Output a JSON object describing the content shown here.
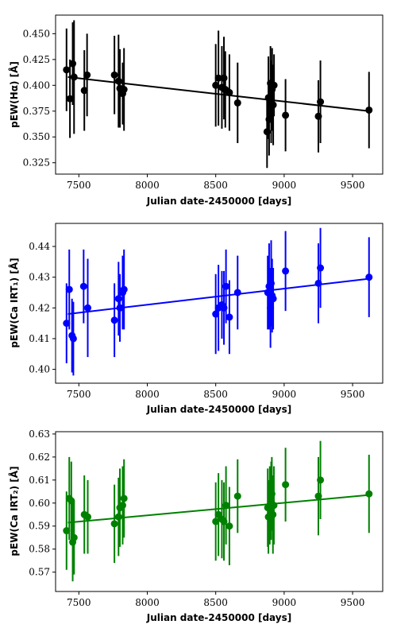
{
  "chart_data": [
    {
      "type": "scatter",
      "xlabel": "Julian date-2450000 [days]",
      "ylabel": "pEW(Hα) [Å]",
      "xlim": [
        7330,
        9720
      ],
      "ylim": [
        0.314,
        0.468
      ],
      "xticks": [
        7500,
        8000,
        8500,
        9000,
        9500
      ],
      "yticks": [
        0.325,
        0.35,
        0.375,
        0.4,
        0.425,
        0.45
      ],
      "tick_decimals": 3,
      "color": "#000000",
      "points": [
        {
          "x": 7410,
          "y": 0.415,
          "err": 0.04
        },
        {
          "x": 7435,
          "y": 0.387,
          "err": 0.038
        },
        {
          "x": 7455,
          "y": 0.421,
          "err": 0.04
        },
        {
          "x": 7465,
          "y": 0.408,
          "err": 0.055
        },
        {
          "x": 7540,
          "y": 0.395,
          "err": 0.039
        },
        {
          "x": 7560,
          "y": 0.41,
          "err": 0.04
        },
        {
          "x": 7760,
          "y": 0.41,
          "err": 0.038
        },
        {
          "x": 7790,
          "y": 0.404,
          "err": 0.045
        },
        {
          "x": 7800,
          "y": 0.397,
          "err": 0.038
        },
        {
          "x": 7820,
          "y": 0.392,
          "err": 0.03
        },
        {
          "x": 7830,
          "y": 0.396,
          "err": 0.04
        },
        {
          "x": 8500,
          "y": 0.4,
          "err": 0.04
        },
        {
          "x": 8520,
          "y": 0.407,
          "err": 0.046
        },
        {
          "x": 8545,
          "y": 0.398,
          "err": 0.04
        },
        {
          "x": 8560,
          "y": 0.407,
          "err": 0.04
        },
        {
          "x": 8570,
          "y": 0.396,
          "err": 0.037
        },
        {
          "x": 8600,
          "y": 0.393,
          "err": 0.037
        },
        {
          "x": 8660,
          "y": 0.383,
          "err": 0.039
        },
        {
          "x": 8875,
          "y": 0.355,
          "err": 0.035
        },
        {
          "x": 8885,
          "y": 0.388,
          "err": 0.04
        },
        {
          "x": 8890,
          "y": 0.367,
          "err": 0.035
        },
        {
          "x": 8900,
          "y": 0.402,
          "err": 0.036
        },
        {
          "x": 8905,
          "y": 0.384,
          "err": 0.04
        },
        {
          "x": 8912,
          "y": 0.396,
          "err": 0.04
        },
        {
          "x": 8920,
          "y": 0.381,
          "err": 0.039
        },
        {
          "x": 8926,
          "y": 0.4,
          "err": 0.03
        },
        {
          "x": 9010,
          "y": 0.371,
          "err": 0.035
        },
        {
          "x": 9250,
          "y": 0.37,
          "err": 0.035
        },
        {
          "x": 9265,
          "y": 0.384,
          "err": 0.04
        },
        {
          "x": 9620,
          "y": 0.376,
          "err": 0.037
        }
      ],
      "fit": {
        "x": [
          7420,
          9620
        ],
        "y": [
          0.408,
          0.375
        ]
      }
    },
    {
      "type": "scatter",
      "xlabel": "Julian date-2450000 [days]",
      "ylabel": "pEW(Ca IRT₁) [Å]",
      "xlim": [
        7330,
        9720
      ],
      "ylim": [
        0.3955,
        0.4475
      ],
      "xticks": [
        7500,
        8000,
        8500,
        9000,
        9500
      ],
      "yticks": [
        0.4,
        0.41,
        0.42,
        0.43,
        0.44
      ],
      "tick_decimals": 2,
      "color": "#0000ff",
      "points": [
        {
          "x": 7410,
          "y": 0.415,
          "err": 0.013
        },
        {
          "x": 7430,
          "y": 0.426,
          "err": 0.013
        },
        {
          "x": 7450,
          "y": 0.411,
          "err": 0.012
        },
        {
          "x": 7460,
          "y": 0.41,
          "err": 0.012
        },
        {
          "x": 7535,
          "y": 0.427,
          "err": 0.012
        },
        {
          "x": 7565,
          "y": 0.42,
          "err": 0.016
        },
        {
          "x": 7760,
          "y": 0.416,
          "err": 0.012
        },
        {
          "x": 7790,
          "y": 0.423,
          "err": 0.012
        },
        {
          "x": 7800,
          "y": 0.42,
          "err": 0.011
        },
        {
          "x": 7820,
          "y": 0.425,
          "err": 0.012
        },
        {
          "x": 7830,
          "y": 0.426,
          "err": 0.013
        },
        {
          "x": 8500,
          "y": 0.418,
          "err": 0.013
        },
        {
          "x": 8520,
          "y": 0.42,
          "err": 0.014
        },
        {
          "x": 8545,
          "y": 0.421,
          "err": 0.011
        },
        {
          "x": 8560,
          "y": 0.42,
          "err": 0.012
        },
        {
          "x": 8575,
          "y": 0.427,
          "err": 0.012
        },
        {
          "x": 8600,
          "y": 0.417,
          "err": 0.012
        },
        {
          "x": 8660,
          "y": 0.425,
          "err": 0.012
        },
        {
          "x": 8880,
          "y": 0.425,
          "err": 0.012
        },
        {
          "x": 8890,
          "y": 0.427,
          "err": 0.014
        },
        {
          "x": 8900,
          "y": 0.42,
          "err": 0.013
        },
        {
          "x": 8905,
          "y": 0.428,
          "err": 0.014
        },
        {
          "x": 8912,
          "y": 0.424,
          "err": 0.012
        },
        {
          "x": 8920,
          "y": 0.423,
          "err": 0.01
        },
        {
          "x": 9010,
          "y": 0.432,
          "err": 0.013
        },
        {
          "x": 9250,
          "y": 0.428,
          "err": 0.013
        },
        {
          "x": 9265,
          "y": 0.433,
          "err": 0.013
        },
        {
          "x": 9620,
          "y": 0.43,
          "err": 0.013
        }
      ],
      "fit": {
        "x": [
          7420,
          9620
        ],
        "y": [
          0.418,
          0.4295
        ]
      }
    },
    {
      "type": "scatter",
      "xlabel": "Julian date-2450000 [days]",
      "ylabel": "pEW(Ca IRT₂) [Å]",
      "xlim": [
        7330,
        9720
      ],
      "ylim": [
        0.5616,
        0.631
      ],
      "xticks": [
        7500,
        8000,
        8500,
        9000,
        9500
      ],
      "yticks": [
        0.57,
        0.58,
        0.59,
        0.6,
        0.61,
        0.62,
        0.63
      ],
      "tick_decimals": 2,
      "color": "#008000",
      "points": [
        {
          "x": 7410,
          "y": 0.588,
          "err": 0.017
        },
        {
          "x": 7430,
          "y": 0.602,
          "err": 0.018
        },
        {
          "x": 7445,
          "y": 0.601,
          "err": 0.017
        },
        {
          "x": 7455,
          "y": 0.583,
          "err": 0.017
        },
        {
          "x": 7465,
          "y": 0.585,
          "err": 0.016
        },
        {
          "x": 7540,
          "y": 0.595,
          "err": 0.017
        },
        {
          "x": 7565,
          "y": 0.594,
          "err": 0.016
        },
        {
          "x": 7760,
          "y": 0.591,
          "err": 0.017
        },
        {
          "x": 7790,
          "y": 0.594,
          "err": 0.017
        },
        {
          "x": 7800,
          "y": 0.598,
          "err": 0.017
        },
        {
          "x": 7820,
          "y": 0.599,
          "err": 0.017
        },
        {
          "x": 7830,
          "y": 0.602,
          "err": 0.017
        },
        {
          "x": 8500,
          "y": 0.592,
          "err": 0.017
        },
        {
          "x": 8520,
          "y": 0.595,
          "err": 0.018
        },
        {
          "x": 8545,
          "y": 0.593,
          "err": 0.017
        },
        {
          "x": 8560,
          "y": 0.592,
          "err": 0.017
        },
        {
          "x": 8575,
          "y": 0.599,
          "err": 0.017
        },
        {
          "x": 8600,
          "y": 0.59,
          "err": 0.017
        },
        {
          "x": 8660,
          "y": 0.603,
          "err": 0.016
        },
        {
          "x": 8880,
          "y": 0.598,
          "err": 0.017
        },
        {
          "x": 8885,
          "y": 0.594,
          "err": 0.016
        },
        {
          "x": 8895,
          "y": 0.599,
          "err": 0.017
        },
        {
          "x": 8905,
          "y": 0.601,
          "err": 0.017
        },
        {
          "x": 8910,
          "y": 0.604,
          "err": 0.016
        },
        {
          "x": 8918,
          "y": 0.595,
          "err": 0.017
        },
        {
          "x": 8925,
          "y": 0.599,
          "err": 0.017
        },
        {
          "x": 9010,
          "y": 0.608,
          "err": 0.016
        },
        {
          "x": 9250,
          "y": 0.603,
          "err": 0.017
        },
        {
          "x": 9265,
          "y": 0.61,
          "err": 0.017
        },
        {
          "x": 9620,
          "y": 0.604,
          "err": 0.017
        }
      ],
      "fit": {
        "x": [
          7420,
          9620
        ],
        "y": [
          0.5915,
          0.6035
        ]
      }
    }
  ]
}
